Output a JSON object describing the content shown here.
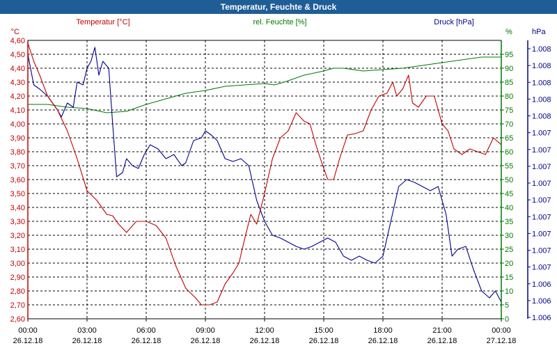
{
  "chart_data": {
    "type": "line",
    "title": "Temperatur, Feuchte & Druck",
    "colors": {
      "temperature": "#c00000",
      "humidity": "#007a00",
      "pressure": "#00008b",
      "title_bg": "#1f5d97"
    },
    "x_ticks": [
      [
        "00:00",
        "26.12.18"
      ],
      [
        "03:00",
        "26.12.18"
      ],
      [
        "06:00",
        "26.12.18"
      ],
      [
        "09:00",
        "26.12.18"
      ],
      [
        "12:00",
        "26.12.18"
      ],
      [
        "15:00",
        "26.12.18"
      ],
      [
        "18:00",
        "26.12.18"
      ],
      [
        "21:00",
        "26.12.18"
      ],
      [
        "00:00",
        "27.12.18"
      ]
    ],
    "x_range_hours": [
      0,
      24
    ],
    "temperature": {
      "label": "Temperatur [°C]",
      "unit": "°C",
      "ylim": [
        2.6,
        4.6
      ],
      "ticks": [
        "4,60",
        "4,50",
        "4,40",
        "4,30",
        "4,20",
        "4,10",
        "4,00",
        "3,90",
        "3,80",
        "3,70",
        "3,60",
        "3,50",
        "3,40",
        "3,30",
        "3,20",
        "3,10",
        "3,00",
        "2,90",
        "2,80",
        "2,70",
        "2,60"
      ],
      "points": [
        [
          0,
          4.58
        ],
        [
          0.3,
          4.45
        ],
        [
          0.6,
          4.35
        ],
        [
          1.0,
          4.2
        ],
        [
          1.5,
          4.1
        ],
        [
          2.0,
          3.95
        ],
        [
          2.5,
          3.75
        ],
        [
          3.0,
          3.52
        ],
        [
          3.5,
          3.45
        ],
        [
          4.0,
          3.35
        ],
        [
          4.3,
          3.34
        ],
        [
          4.6,
          3.28
        ],
        [
          5.0,
          3.22
        ],
        [
          5.5,
          3.3
        ],
        [
          6.0,
          3.3
        ],
        [
          6.5,
          3.27
        ],
        [
          7.0,
          3.18
        ],
        [
          7.5,
          2.98
        ],
        [
          8.0,
          2.82
        ],
        [
          8.5,
          2.75
        ],
        [
          8.8,
          2.7
        ],
        [
          9.2,
          2.7
        ],
        [
          9.6,
          2.72
        ],
        [
          10.0,
          2.85
        ],
        [
          10.4,
          2.93
        ],
        [
          10.7,
          3.0
        ],
        [
          11.0,
          3.18
        ],
        [
          11.3,
          3.35
        ],
        [
          11.6,
          3.28
        ],
        [
          12.0,
          3.5
        ],
        [
          12.4,
          3.75
        ],
        [
          12.8,
          3.9
        ],
        [
          13.2,
          3.95
        ],
        [
          13.6,
          4.08
        ],
        [
          14.0,
          4.02
        ],
        [
          14.3,
          4.0
        ],
        [
          14.6,
          3.85
        ],
        [
          14.9,
          3.72
        ],
        [
          15.2,
          3.6
        ],
        [
          15.5,
          3.6
        ],
        [
          15.8,
          3.75
        ],
        [
          16.2,
          3.92
        ],
        [
          16.6,
          3.93
        ],
        [
          17.0,
          3.95
        ],
        [
          17.4,
          4.1
        ],
        [
          17.8,
          4.2
        ],
        [
          18.2,
          4.22
        ],
        [
          18.5,
          4.3
        ],
        [
          18.7,
          4.2
        ],
        [
          19.0,
          4.25
        ],
        [
          19.3,
          4.35
        ],
        [
          19.5,
          4.15
        ],
        [
          19.8,
          4.12
        ],
        [
          20.2,
          4.2
        ],
        [
          20.6,
          4.2
        ],
        [
          21.0,
          4.0
        ],
        [
          21.3,
          3.95
        ],
        [
          21.6,
          3.82
        ],
        [
          22.0,
          3.78
        ],
        [
          22.4,
          3.82
        ],
        [
          22.8,
          3.8
        ],
        [
          23.2,
          3.78
        ],
        [
          23.6,
          3.9
        ],
        [
          24.0,
          3.85
        ]
      ]
    },
    "humidity": {
      "label": "rel. Feuchte [%]",
      "unit": "%",
      "ylim": [
        0,
        100
      ],
      "ticks": [
        "95",
        "90",
        "85",
        "80",
        "75",
        "70",
        "65",
        "60",
        "55",
        "50",
        "45",
        "40",
        "35",
        "30",
        "25",
        "20",
        "15",
        "10",
        "5",
        "0"
      ],
      "points": [
        [
          0,
          77
        ],
        [
          1,
          77
        ],
        [
          2,
          76
        ],
        [
          3,
          75.5
        ],
        [
          4,
          74
        ],
        [
          5,
          74.5
        ],
        [
          6,
          77
        ],
        [
          7,
          79
        ],
        [
          8,
          81
        ],
        [
          9,
          82
        ],
        [
          10,
          83.5
        ],
        [
          11,
          84
        ],
        [
          12,
          84.5
        ],
        [
          12.5,
          84
        ],
        [
          13,
          85
        ],
        [
          14,
          87.5
        ],
        [
          15,
          89
        ],
        [
          15.5,
          90
        ],
        [
          16,
          90
        ],
        [
          17,
          89
        ],
        [
          18,
          89.5
        ],
        [
          19,
          90
        ],
        [
          20,
          91
        ],
        [
          21,
          92
        ],
        [
          22,
          93
        ],
        [
          23,
          94
        ],
        [
          24,
          94
        ]
      ]
    },
    "pressure": {
      "label": "Druck [hPa]",
      "unit": "hPa",
      "ticks": [
        "1.008",
        "1.008",
        "1.008",
        "1.008",
        "1.008",
        "1.007",
        "1.007",
        "1.007",
        "1.007",
        "1.007",
        "1.007",
        "1.007",
        "1.007",
        "1.007",
        "1.006",
        "1.006",
        "1.006"
      ],
      "points_temp_scale": [
        [
          0,
          4.5
        ],
        [
          0.3,
          4.28
        ],
        [
          0.6,
          4.25
        ],
        [
          1.0,
          4.2
        ],
        [
          1.5,
          4.1
        ],
        [
          1.7,
          4.05
        ],
        [
          2.0,
          4.15
        ],
        [
          2.3,
          4.12
        ],
        [
          2.5,
          4.3
        ],
        [
          2.8,
          4.28
        ],
        [
          3.0,
          4.4
        ],
        [
          3.2,
          4.45
        ],
        [
          3.4,
          4.55
        ],
        [
          3.6,
          4.35
        ],
        [
          3.8,
          4.45
        ],
        [
          4.1,
          4.4
        ],
        [
          4.3,
          4.0
        ],
        [
          4.5,
          3.62
        ],
        [
          4.8,
          3.65
        ],
        [
          5.0,
          3.75
        ],
        [
          5.3,
          3.7
        ],
        [
          5.6,
          3.68
        ],
        [
          5.9,
          3.78
        ],
        [
          6.2,
          3.85
        ],
        [
          6.6,
          3.82
        ],
        [
          7.0,
          3.75
        ],
        [
          7.4,
          3.78
        ],
        [
          7.8,
          3.7
        ],
        [
          8.0,
          3.72
        ],
        [
          8.4,
          3.88
        ],
        [
          8.8,
          3.9
        ],
        [
          9.0,
          3.95
        ],
        [
          9.3,
          3.92
        ],
        [
          9.6,
          3.88
        ],
        [
          10.0,
          3.75
        ],
        [
          10.4,
          3.73
        ],
        [
          10.8,
          3.75
        ],
        [
          11.2,
          3.7
        ],
        [
          11.6,
          3.45
        ],
        [
          12.0,
          3.3
        ],
        [
          12.4,
          3.2
        ],
        [
          12.8,
          3.18
        ],
        [
          13.2,
          3.15
        ],
        [
          13.6,
          3.12
        ],
        [
          14.0,
          3.1
        ],
        [
          14.4,
          3.12
        ],
        [
          14.8,
          3.15
        ],
        [
          15.2,
          3.18
        ],
        [
          15.6,
          3.15
        ],
        [
          16.0,
          3.05
        ],
        [
          16.4,
          3.02
        ],
        [
          16.8,
          3.05
        ],
        [
          17.2,
          3.02
        ],
        [
          17.6,
          3.0
        ],
        [
          18.0,
          3.05
        ],
        [
          18.4,
          3.3
        ],
        [
          18.8,
          3.55
        ],
        [
          19.2,
          3.6
        ],
        [
          19.6,
          3.58
        ],
        [
          20.0,
          3.55
        ],
        [
          20.4,
          3.52
        ],
        [
          20.8,
          3.55
        ],
        [
          21.2,
          3.35
        ],
        [
          21.5,
          3.05
        ],
        [
          21.8,
          3.1
        ],
        [
          22.2,
          3.12
        ],
        [
          22.6,
          2.95
        ],
        [
          23.0,
          2.8
        ],
        [
          23.4,
          2.75
        ],
        [
          23.7,
          2.8
        ],
        [
          24.0,
          2.72
        ]
      ]
    }
  }
}
